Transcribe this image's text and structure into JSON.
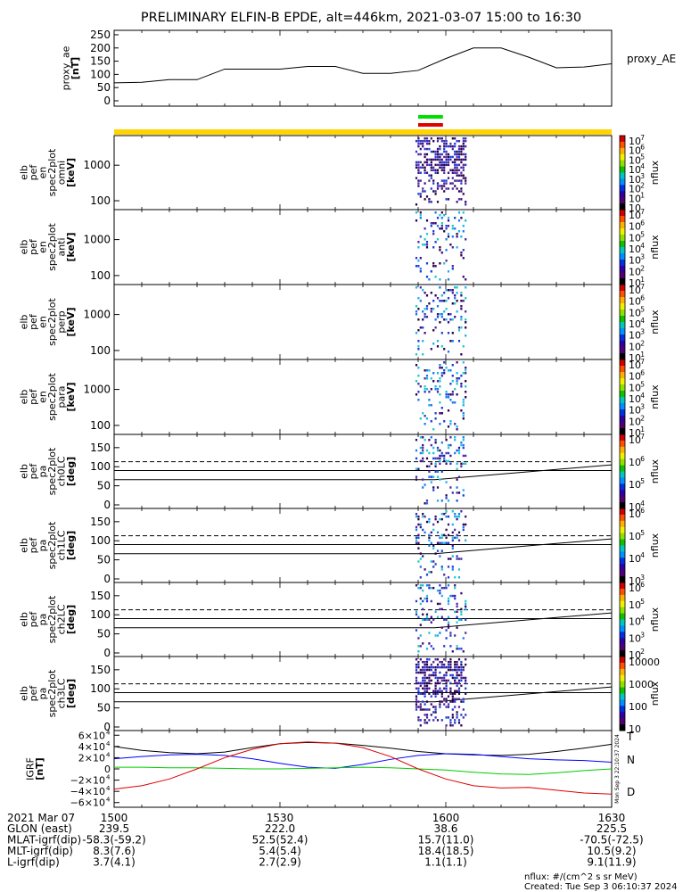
{
  "title": "PRELIMINARY ELFIN-B EPDE, alt=446km, 2021-03-07 15:00 to 16:30",
  "colors": {
    "axes": "#000000",
    "bar_yellow": "#ffd400",
    "flag_green": "#00e000",
    "flag_red": "#e00000",
    "field_blue": "#0000ff",
    "field_green": "#00cc00",
    "field_red": "#dd0000"
  },
  "chart_data": [
    {
      "type": "line",
      "name": "proxy_ae",
      "ylabel": [
        "proxy_ae",
        "[nT]"
      ],
      "legend": "proxy_AE",
      "ylim": [
        0,
        260
      ],
      "yticks": [
        "250",
        "200",
        "150",
        "100",
        "50",
        "0"
      ],
      "ytick_values": [
        250,
        200,
        150,
        100,
        50,
        0
      ],
      "x_minutes": [
        0,
        5,
        10,
        15,
        20,
        25,
        30,
        35,
        40,
        45,
        50,
        55,
        60,
        65,
        70,
        75,
        80,
        85,
        90
      ],
      "values": [
        68,
        70,
        80,
        80,
        120,
        120,
        120,
        130,
        130,
        104,
        104,
        115,
        160,
        200,
        200,
        165,
        125,
        128,
        140
      ]
    },
    {
      "type": "heatmap",
      "name": "omni",
      "ylabel": [
        "elb",
        "pef",
        "en",
        "spec2plot",
        "omni",
        "[keV]"
      ],
      "yscale": "log",
      "yticks": [
        "1000",
        "100"
      ],
      "colorbar": {
        "label": "nflux",
        "ticks": [
          "10",
          "10",
          "10",
          "10",
          "10",
          "10",
          "10",
          "10"
        ],
        "exponents": [
          "7",
          "6",
          "5",
          "4",
          "3",
          "2",
          "1",
          ""
        ]
      }
    },
    {
      "type": "heatmap",
      "name": "anti",
      "ylabel": [
        "elb",
        "pef",
        "en",
        "spec2plot",
        "anti",
        "[keV]"
      ],
      "yscale": "log",
      "yticks": [
        "1000",
        "100"
      ],
      "colorbar": {
        "label": "nflux",
        "ticks": [
          "10",
          "10",
          "10",
          "10",
          "10",
          "10",
          "10"
        ],
        "exponents": [
          "7",
          "6",
          "5",
          "4",
          "3",
          "2",
          "1"
        ]
      }
    },
    {
      "type": "heatmap",
      "name": "perp",
      "ylabel": [
        "elb",
        "pef",
        "en",
        "spec2plot",
        "perp",
        "[keV]"
      ],
      "yscale": "log",
      "yticks": [
        "1000",
        "100"
      ],
      "colorbar": {
        "label": "nflux",
        "ticks": [
          "10",
          "10",
          "10",
          "10",
          "10",
          "10",
          "10"
        ],
        "exponents": [
          "7",
          "6",
          "5",
          "4",
          "3",
          "2",
          "1"
        ]
      }
    },
    {
      "type": "heatmap",
      "name": "para",
      "ylabel": [
        "elb",
        "pef",
        "en",
        "spec2plot",
        "para",
        "[keV]"
      ],
      "yscale": "log",
      "yticks": [
        "1000",
        "100"
      ],
      "colorbar": {
        "label": "nflux",
        "ticks": [
          "10",
          "10",
          "10",
          "10",
          "10",
          "10",
          "10"
        ],
        "exponents": [
          "7",
          "6",
          "5",
          "4",
          "3",
          "2",
          "1"
        ]
      }
    },
    {
      "type": "heatmap",
      "name": "ch0LC",
      "ylabel": [
        "elb",
        "pef",
        "pa",
        "spec2plot",
        "ch0LC",
        "[deg]"
      ],
      "ylim": [
        0,
        180
      ],
      "yticks": [
        "150",
        "100",
        "50",
        "0"
      ],
      "colorbar": {
        "label": "nflux",
        "ticks": [
          "10",
          "10",
          "10",
          "10"
        ],
        "exponents": [
          "7",
          "6",
          "5",
          "4"
        ]
      }
    },
    {
      "type": "heatmap",
      "name": "ch1LC",
      "ylabel": [
        "elb",
        "pef",
        "pa",
        "spec2plot",
        "ch1LC",
        "[deg]"
      ],
      "ylim": [
        0,
        180
      ],
      "yticks": [
        "150",
        "100",
        "50",
        "0"
      ],
      "colorbar": {
        "label": "nflux",
        "ticks": [
          "10",
          "10",
          "10",
          "10"
        ],
        "exponents": [
          "6",
          "5",
          "4",
          "3"
        ]
      }
    },
    {
      "type": "heatmap",
      "name": "ch2LC",
      "ylabel": [
        "elb",
        "pef",
        "pa",
        "spec2plot",
        "ch2LC",
        "[deg]"
      ],
      "ylim": [
        0,
        180
      ],
      "yticks": [
        "150",
        "100",
        "50",
        "0"
      ],
      "colorbar": {
        "label": "nflux",
        "ticks": [
          "10",
          "10",
          "10",
          "10",
          "10"
        ],
        "exponents": [
          "6",
          "5",
          "4",
          "3",
          "2"
        ]
      }
    },
    {
      "type": "heatmap",
      "name": "ch3LC",
      "ylabel": [
        "elb",
        "pef",
        "pa",
        "spec2plot",
        "ch3LC",
        "[deg]"
      ],
      "ylim": [
        0,
        180
      ],
      "yticks": [
        "150",
        "100",
        "50",
        "0"
      ],
      "colorbar": {
        "label": "nflux",
        "ticks": [
          "10000",
          "1000",
          "100",
          "10"
        ],
        "exponents": [
          "",
          "",
          "",
          ""
        ]
      }
    },
    {
      "type": "line",
      "name": "IGRF",
      "ylabel": [
        "IGRF",
        "[nT]"
      ],
      "yticks": [
        "6×10",
        "4×10",
        "2×10",
        "0",
        "−2×10",
        "−4×10",
        "−6×10"
      ],
      "ytick_values": [
        60000,
        40000,
        20000,
        0,
        -20000,
        -40000,
        -60000
      ],
      "ytick_exponent": "4",
      "ylim": [
        -62000,
        62000
      ],
      "x_minutes": [
        0,
        5,
        10,
        15,
        20,
        25,
        30,
        35,
        40,
        45,
        50,
        55,
        60,
        65,
        70,
        75,
        80,
        85,
        90
      ],
      "series": [
        {
          "name": "T",
          "color": "#000000",
          "values": [
            40000,
            33000,
            29000,
            27000,
            30000,
            38000,
            45000,
            47000,
            46000,
            42000,
            37000,
            31000,
            27000,
            25000,
            24000,
            26000,
            31000,
            37000,
            44000
          ]
        },
        {
          "name": "N",
          "color": "#0000ff",
          "values": [
            18000,
            22000,
            25000,
            26000,
            24000,
            18000,
            10000,
            3000,
            1000,
            8000,
            17000,
            24000,
            27000,
            26000,
            22000,
            18000,
            16000,
            15000,
            12000
          ]
        },
        {
          "name": "",
          "color": "#00cc00",
          "values": [
            3000,
            3000,
            2000,
            2000,
            1000,
            0,
            0,
            1000,
            2000,
            3000,
            2000,
            0,
            -2000,
            -6000,
            -9000,
            -10000,
            -7000,
            -3000,
            0
          ]
        },
        {
          "name": "D",
          "color": "#dd0000",
          "values": [
            -36000,
            -30000,
            -18000,
            0,
            20000,
            35000,
            45000,
            48000,
            46000,
            38000,
            22000,
            0,
            -18000,
            -30000,
            -34000,
            -33000,
            -38000,
            -43000,
            -45000
          ]
        }
      ],
      "side_stamp": "Mon Sep  3 22:10:37 2024"
    }
  ],
  "x_axis": {
    "ticks": [
      "1500",
      "1530",
      "1600",
      "1630"
    ],
    "tick_minutes": [
      0,
      30,
      60,
      90
    ],
    "date_label": "2021 Mar 07"
  },
  "ephemeris": [
    {
      "label": "GLON (east)",
      "values": [
        "239.5",
        "222.0",
        "38.6",
        "225.5"
      ]
    },
    {
      "label": "MLAT-igrf(dip)",
      "values": [
        "-58.3(-59.2)",
        "52.5(52.4)",
        "15.7(11.0)",
        "-70.5(-72.5)"
      ]
    },
    {
      "label": "MLT-igrf(dip)",
      "values": [
        "8.3(7.6)",
        "5.4(5.4)",
        "18.4(18.5)",
        "10.5(9.2)"
      ]
    },
    {
      "label": "L-igrf(dip)",
      "values": [
        "3.7(4.1)",
        "2.7(2.9)",
        "1.1(1.1)",
        "9.1(11.9)"
      ]
    }
  ],
  "footer": {
    "units": "nflux: #/(cm^2 s sr MeV)",
    "created": "Created: Tue Sep  3 06:10:37 2024"
  }
}
